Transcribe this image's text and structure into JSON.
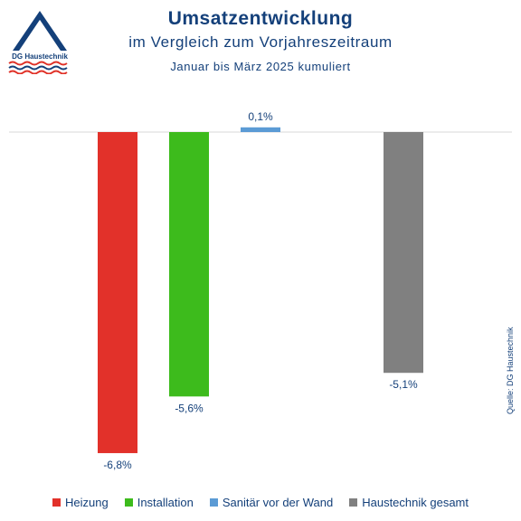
{
  "header": {
    "title": "Umsatzentwicklung",
    "subtitle": "im Vergleich zum Vorjahreszeitraum",
    "period": "Januar bis März 2025 kumuliert"
  },
  "logo": {
    "text": "DG Haustechnik",
    "colors": {
      "primary": "#14407a",
      "accent": "#e03127"
    }
  },
  "source": "Quelle: DG Haustechnik",
  "chart_data": {
    "type": "bar",
    "title": "Umsatzentwicklung",
    "categories": [
      "Heizung",
      "Installation",
      "Sanitär vor der Wand",
      "Haustechnik gesamt"
    ],
    "values": [
      -6.8,
      -5.6,
      0.1,
      -5.1
    ],
    "value_labels": [
      "-6,8%",
      "-5,6%",
      "0,1%",
      "-5,1%"
    ],
    "colors": [
      "#e2312a",
      "#3dbb1c",
      "#5b9bd5",
      "#808080"
    ],
    "unit": "%",
    "ylim": [
      -7.0,
      0.2
    ],
    "grid": false,
    "legend": "bottom"
  },
  "legend": {
    "items": [
      {
        "label": "Heizung",
        "color": "#e2312a"
      },
      {
        "label": "Installation",
        "color": "#3dbb1c"
      },
      {
        "label": "Sanitär vor der Wand",
        "color": "#5b9bd5"
      },
      {
        "label": "Haustechnik gesamt",
        "color": "#808080"
      }
    ]
  }
}
